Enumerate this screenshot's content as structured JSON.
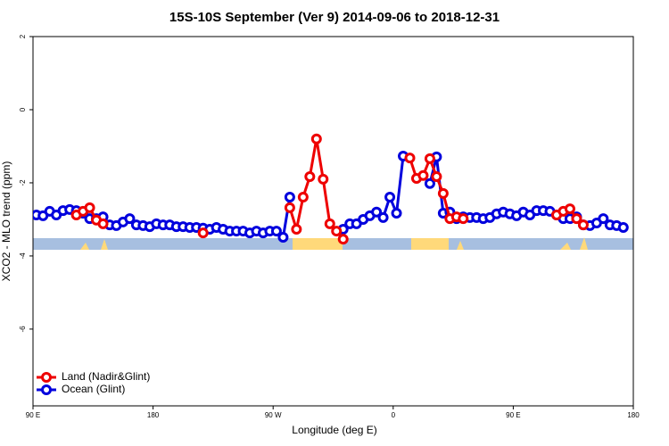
{
  "chart_data": {
    "type": "line",
    "title": "15S-10S September (Ver 9)   2014-09-06 to 2018-12-31",
    "xlabel": "Longitude (deg E)",
    "ylabel": "XCO2 - MLO trend (ppm)",
    "xlim": [
      90,
      540
    ],
    "ylim": [
      -8.1,
      2
    ],
    "xticks": [
      {
        "value": 90,
        "label": "90 E"
      },
      180,
      {
        "value": 270,
        "label": "90 W"
      },
      {
        "value": 360,
        "label": "0"
      },
      {
        "value": 450,
        "label": "90 E"
      },
      {
        "value": 540,
        "label": "180"
      }
    ],
    "yticks": [
      2,
      0,
      -2,
      -4,
      -6
    ],
    "legend": "bottom-left",
    "series": [
      {
        "name": "Land (Nadir&Glint)",
        "color": "#ee0000",
        "x": [
          122.5,
          127.5,
          132.5,
          137.5,
          142.5,
          147.5,
          217.5,
          222.5,
          282.5,
          287.5,
          292.5,
          297.5,
          302.5,
          307.5,
          312.5,
          317.5,
          322.5,
          327.5,
          372.5,
          377.5,
          382.5,
          387.5,
          392.5,
          397.5,
          402.5,
          407.5,
          412.5,
          417.5,
          482.5,
          487.5,
          492.5,
          497.5,
          502.5
        ],
        "values": [
          -2.88,
          -2.78,
          -2.68,
          -3.02,
          -3.12,
          null,
          -3.37,
          null,
          -2.68,
          -3.27,
          -2.39,
          -1.83,
          -0.8,
          -1.9,
          -3.12,
          -3.32,
          -3.54,
          null,
          -1.32,
          -1.88,
          -1.8,
          -1.34,
          -1.83,
          -2.29,
          -2.98,
          -2.93,
          -2.98,
          null,
          -2.88,
          -2.78,
          -2.71,
          -2.98,
          -3.15
        ]
      },
      {
        "name": "Ocean (Glint)",
        "color": "#0000dd",
        "x": [
          92.5,
          97.5,
          102.5,
          107.5,
          112.5,
          117.5,
          122.5,
          127.5,
          132.5,
          137.5,
          142.5,
          147.5,
          152.5,
          157.5,
          162.5,
          167.5,
          172.5,
          177.5,
          182.5,
          187.5,
          192.5,
          197.5,
          202.5,
          207.5,
          212.5,
          217.5,
          222.5,
          227.5,
          232.5,
          237.5,
          242.5,
          247.5,
          252.5,
          257.5,
          262.5,
          267.5,
          272.5,
          277.5,
          282.5,
          287.5,
          292.5,
          297.5,
          302.5,
          307.5,
          312.5,
          317.5,
          322.5,
          327.5,
          332.5,
          337.5,
          342.5,
          347.5,
          352.5,
          357.5,
          362.5,
          367.5,
          372.5,
          377.5,
          382.5,
          387.5,
          392.5,
          397.5,
          402.5,
          407.5,
          412.5,
          417.5,
          422.5,
          427.5,
          432.5,
          437.5,
          442.5,
          447.5,
          452.5,
          457.5,
          462.5,
          467.5,
          472.5,
          477.5,
          482.5,
          487.5,
          492.5,
          497.5,
          502.5,
          507.5,
          512.5,
          517.5,
          522.5,
          527.5,
          532.5
        ],
        "values": [
          -2.88,
          -2.9,
          -2.78,
          -2.88,
          -2.76,
          -2.73,
          -2.76,
          -2.83,
          -2.98,
          -2.98,
          -2.93,
          -3.15,
          -3.17,
          -3.07,
          -2.98,
          -3.15,
          -3.17,
          -3.2,
          -3.12,
          -3.15,
          -3.15,
          -3.2,
          -3.2,
          -3.22,
          -3.22,
          -3.24,
          -3.27,
          -3.22,
          -3.27,
          -3.32,
          -3.32,
          -3.32,
          -3.37,
          -3.32,
          -3.37,
          -3.32,
          -3.32,
          -3.49,
          -2.39,
          null,
          null,
          null,
          null,
          null,
          null,
          null,
          -3.27,
          -3.12,
          -3.12,
          -3.0,
          -2.9,
          -2.8,
          -2.95,
          -2.39,
          -2.83,
          -1.27,
          null,
          null,
          null,
          -2.02,
          -1.29,
          -2.83,
          -2.8,
          -2.98,
          -2.93,
          -2.95,
          -2.95,
          -2.98,
          -2.95,
          -2.85,
          -2.8,
          -2.85,
          -2.9,
          -2.8,
          -2.88,
          -2.76,
          -2.76,
          -2.78,
          -2.88,
          -2.98,
          -2.98,
          -2.93,
          -3.15,
          -3.17,
          -3.1,
          -2.98,
          -3.15,
          -3.17,
          -3.22
        ]
      }
    ]
  }
}
